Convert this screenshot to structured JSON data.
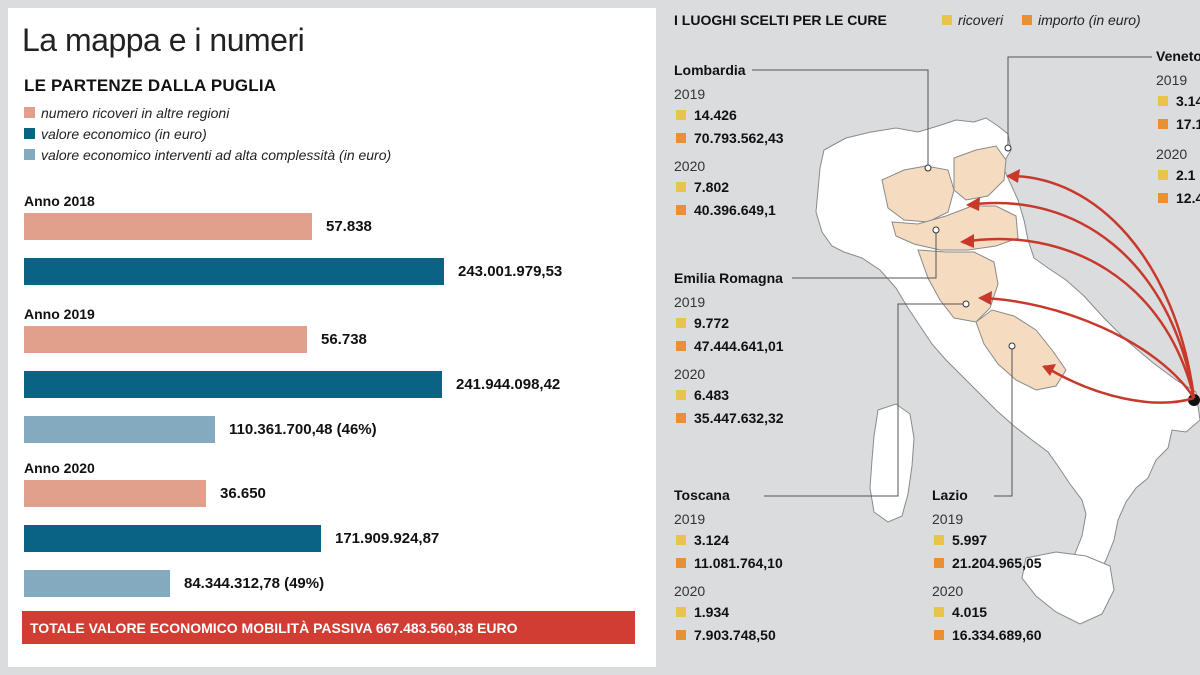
{
  "left": {
    "title": "La mappa e i numeri",
    "subtitle": "LE PARTENZE DALLA PUGLIA",
    "legend": [
      {
        "label": "numero ricoveri in altre regioni",
        "color": "#e0a08c"
      },
      {
        "label": "valore economico (in euro)",
        "color": "#0b6383"
      },
      {
        "label": "valore economico interventi ad alta complessità (in euro)",
        "color": "#84aac0"
      }
    ],
    "total_banner": "TOTALE VALORE ECONOMICO MOBILITÀ PASSIVA 667.483.560,38 EURO"
  },
  "chart_data": {
    "type": "bar",
    "categories": [
      "Anno 2018",
      "Anno 2019",
      "Anno 2020"
    ],
    "series": [
      {
        "name": "numero ricoveri in altre regioni",
        "values": [
          57838,
          56738,
          36650
        ],
        "labels": [
          "57.838",
          "56.738",
          "36.650"
        ],
        "color": "#e0a08c"
      },
      {
        "name": "valore economico (in euro)",
        "values": [
          243001979.53,
          241944098.42,
          171909924.87
        ],
        "labels": [
          "243.001.979,53",
          "241.944.098,42",
          "171.909.924,87"
        ],
        "color": "#0b6383"
      },
      {
        "name": "valore economico interventi ad alta complessità (in euro)",
        "values": [
          null,
          110361700.48,
          84344312.78
        ],
        "labels": [
          null,
          "110.361.700,48 (46%)",
          "84.344.312,78 (49%)"
        ],
        "color": "#84aac0"
      }
    ]
  },
  "map": {
    "title": "I LUOGHI SCELTI PER LE CURE",
    "legend": [
      {
        "label": "ricoveri",
        "color": "#eac44a"
      },
      {
        "label": "importo (in euro)",
        "color": "#e99033"
      }
    ],
    "colors": {
      "highlight": "#f5dcc0",
      "base": "#ffffff",
      "arrow": "#c8392b",
      "border": "#8a8a8a"
    },
    "regions": [
      {
        "name": "Lombardia",
        "years": [
          {
            "year": "2019",
            "ricoveri": "14.426",
            "importo": "70.793.562,43"
          },
          {
            "year": "2020",
            "ricoveri": "7.802",
            "importo": "40.396.649,1"
          }
        ]
      },
      {
        "name": "Emilia Romagna",
        "years": [
          {
            "year": "2019",
            "ricoveri": "9.772",
            "importo": "47.444.641,01"
          },
          {
            "year": "2020",
            "ricoveri": "6.483",
            "importo": "35.447.632,32"
          }
        ]
      },
      {
        "name": "Toscana",
        "years": [
          {
            "year": "2019",
            "ricoveri": "3.124",
            "importo": "11.081.764,10"
          },
          {
            "year": "2020",
            "ricoveri": "1.934",
            "importo": "7.903.748,50"
          }
        ]
      },
      {
        "name": "Lazio",
        "years": [
          {
            "year": "2019",
            "ricoveri": "5.997",
            "importo": "21.204.965,05"
          },
          {
            "year": "2020",
            "ricoveri": "4.015",
            "importo": "16.334.689,60"
          }
        ]
      },
      {
        "name": "Veneto",
        "years": [
          {
            "year": "2019",
            "ricoveri": "3.14",
            "importo": "17.1"
          },
          {
            "year": "2020",
            "ricoveri": "2.1",
            "importo": "12.4"
          }
        ]
      }
    ]
  }
}
